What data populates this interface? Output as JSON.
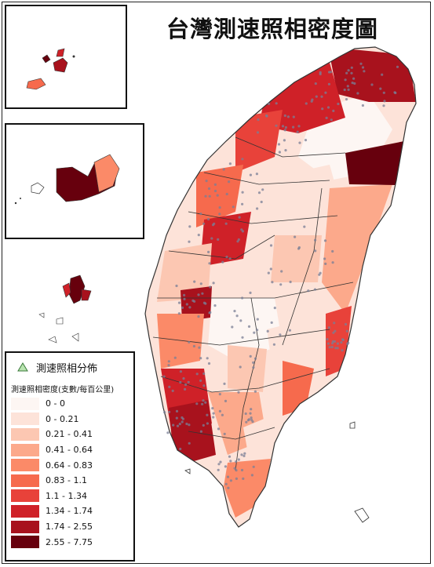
{
  "title": "台灣測速照相密度圖",
  "legend": {
    "camera_label": "測速照相分佈",
    "camera_icon": "triangle-icon",
    "density_title": "測速照相密度(支數/每百公里)",
    "classes": [
      {
        "label": "0 - 0",
        "color": "#fdf6f3"
      },
      {
        "label": "0 - 0.21",
        "color": "#fde3d9"
      },
      {
        "label": "0.21 - 0.41",
        "color": "#fcc7b2"
      },
      {
        "label": "0.41 - 0.64",
        "color": "#fca98b"
      },
      {
        "label": "0.64 - 0.83",
        "color": "#fb8a68"
      },
      {
        "label": "0.83 - 1.1",
        "color": "#f66a4d"
      },
      {
        "label": "1.1 - 1.34",
        "color": "#e8423a"
      },
      {
        "label": "1.34 - 1.74",
        "color": "#cf2128"
      },
      {
        "label": "1.74 - 2.55",
        "color": "#a8121d"
      },
      {
        "label": "2.55 - 7.75",
        "color": "#67000d"
      }
    ]
  },
  "colors": {
    "camera_triangle_fill": "#b9e4b0",
    "camera_dot": "#7a7f96",
    "boundary": "#333333"
  }
}
